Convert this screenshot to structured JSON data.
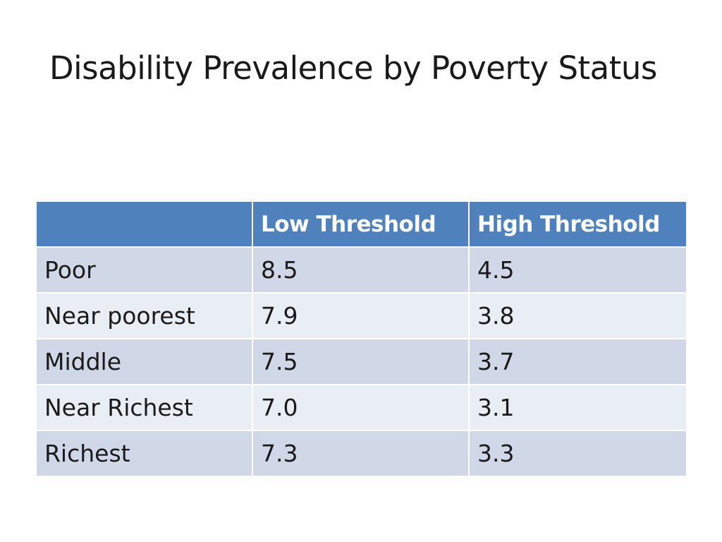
{
  "slide": {
    "title": "Disability Prevalence by Poverty Status"
  },
  "table": {
    "headers": [
      "",
      "Low Threshold",
      "High Threshold"
    ],
    "rows": [
      {
        "group": "Poor",
        "low": "8.5",
        "high": "4.5"
      },
      {
        "group": "Near poorest",
        "low": "7.9",
        "high": "3.8"
      },
      {
        "group": "Middle",
        "low": "7.5",
        "high": "3.7"
      },
      {
        "group": "Near Richest",
        "low": "7.0",
        "high": "3.1"
      },
      {
        "group": "Richest",
        "low": "7.3",
        "high": "3.3"
      }
    ]
  },
  "colors": {
    "header_fill": "#4f81bd",
    "row_band_dark": "#d0d8e8",
    "row_band_light": "#e9edf4",
    "header_text": "#ffffff",
    "body_text": "#1a1a1a"
  }
}
